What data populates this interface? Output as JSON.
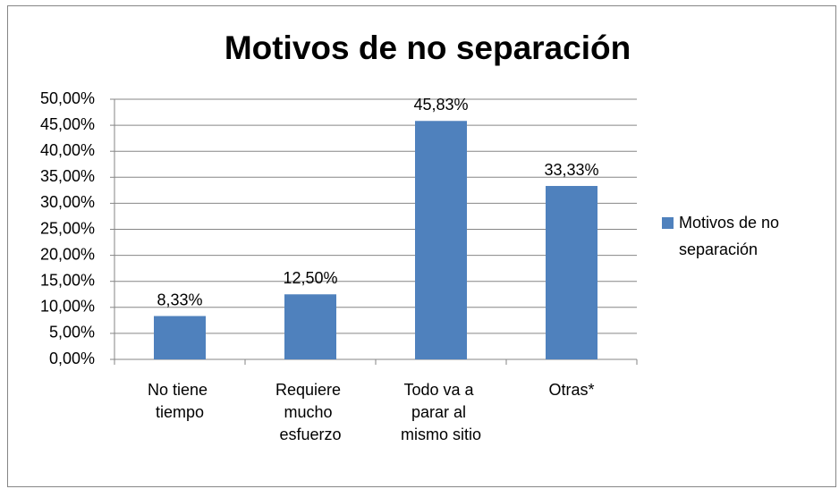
{
  "chart_data": {
    "type": "bar",
    "title": "Motivos de no separación",
    "categories": [
      "No tiene tiempo",
      "Requiere mucho esfuerzo",
      "Todo va a parar al mismo sitio",
      "Otras*"
    ],
    "series": [
      {
        "name": "Motivos de no separación",
        "color": "#4f81bd",
        "values": [
          8.33,
          12.5,
          45.83,
          33.33
        ],
        "value_labels": [
          "8,33%",
          "12,50%",
          "45,83%",
          "33,33%"
        ]
      }
    ],
    "ylim": [
      0,
      50
    ],
    "yticks": [
      {
        "value": 0,
        "label": "0,00%"
      },
      {
        "value": 5,
        "label": "5,00%"
      },
      {
        "value": 10,
        "label": "10,00%"
      },
      {
        "value": 15,
        "label": "15,00%"
      },
      {
        "value": 20,
        "label": "20,00%"
      },
      {
        "value": 25,
        "label": "25,00%"
      },
      {
        "value": 30,
        "label": "30,00%"
      },
      {
        "value": 35,
        "label": "35,00%"
      },
      {
        "value": 40,
        "label": "40,00%"
      },
      {
        "value": 45,
        "label": "45,00%"
      },
      {
        "value": 50,
        "label": "50,00%"
      }
    ],
    "grid": true,
    "legend": "right"
  }
}
